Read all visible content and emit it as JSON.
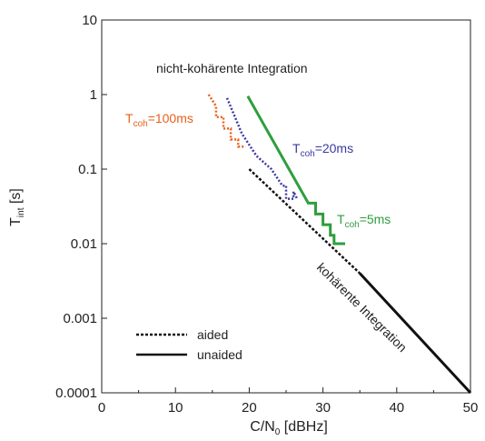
{
  "chart_data": {
    "type": "line",
    "xlabel": {
      "main": "C/N",
      "sub": "0",
      "unit": " [dBHz]"
    },
    "ylabel": {
      "main": "T",
      "sub": "int",
      "unit": " [s]"
    },
    "xlim": [
      0,
      50
    ],
    "ylim": [
      0.0001,
      10
    ],
    "yscale": "log",
    "grid": false,
    "x_ticks": [
      "0",
      "10",
      "20",
      "30",
      "40",
      "50"
    ],
    "y_ticks": [
      "0.0001",
      "0.001",
      "0.01",
      "0.1",
      "1",
      "10"
    ],
    "annotations": {
      "noncoherent": "nicht-kohärente Integration",
      "coherent": "kohärente Integration"
    },
    "series": [
      {
        "label_main": "T",
        "label_sub": "coh",
        "label_rest": "=100ms",
        "color": "#e8601c",
        "style": "dotted",
        "points": [
          [
            14.5,
            1.0
          ],
          [
            15.5,
            0.7
          ],
          [
            15.5,
            0.5
          ],
          [
            16.5,
            0.5
          ],
          [
            16.5,
            0.35
          ],
          [
            17.5,
            0.35
          ],
          [
            17.5,
            0.25
          ],
          [
            18.5,
            0.25
          ],
          [
            18.5,
            0.2
          ],
          [
            19.5,
            0.2
          ]
        ]
      },
      {
        "label_main": "T",
        "label_sub": "coh",
        "label_rest": "=20ms",
        "color": "#3a3aa0",
        "style": "dotted",
        "points": [
          [
            17.0,
            0.9
          ],
          [
            19.0,
            0.3
          ],
          [
            21.0,
            0.15
          ],
          [
            23.0,
            0.1
          ],
          [
            24.5,
            0.06
          ],
          [
            25.0,
            0.06
          ],
          [
            25.0,
            0.04
          ],
          [
            26.0,
            0.04
          ],
          [
            26.0,
            0.05
          ],
          [
            26.5,
            0.04
          ]
        ]
      },
      {
        "label_main": "T",
        "label_sub": "coh",
        "label_rest": "=5ms",
        "color": "#2e9e3e",
        "style": "solid",
        "points": [
          [
            19.8,
            0.95
          ],
          [
            28.0,
            0.035
          ],
          [
            29.0,
            0.035
          ],
          [
            29.0,
            0.025
          ],
          [
            30.0,
            0.025
          ],
          [
            30.0,
            0.018
          ],
          [
            31.0,
            0.018
          ],
          [
            31.0,
            0.013
          ],
          [
            31.5,
            0.013
          ],
          [
            31.5,
            0.01
          ],
          [
            33.0,
            0.01
          ]
        ]
      },
      {
        "label_main": "",
        "label_sub": "",
        "label_rest": "",
        "color": "#111111",
        "style": "dashed",
        "points": [
          [
            20.0,
            0.1
          ],
          [
            35.0,
            0.004
          ]
        ]
      },
      {
        "label_main": "",
        "label_sub": "",
        "label_rest": "",
        "color": "#111111",
        "style": "solid",
        "points": [
          [
            35.0,
            0.004
          ],
          [
            50.0,
            0.0001
          ]
        ]
      }
    ],
    "legend": {
      "position": "bottom-left",
      "entries": [
        {
          "label": "aided",
          "style": "dotted"
        },
        {
          "label": "unaided",
          "style": "solid"
        }
      ]
    }
  }
}
